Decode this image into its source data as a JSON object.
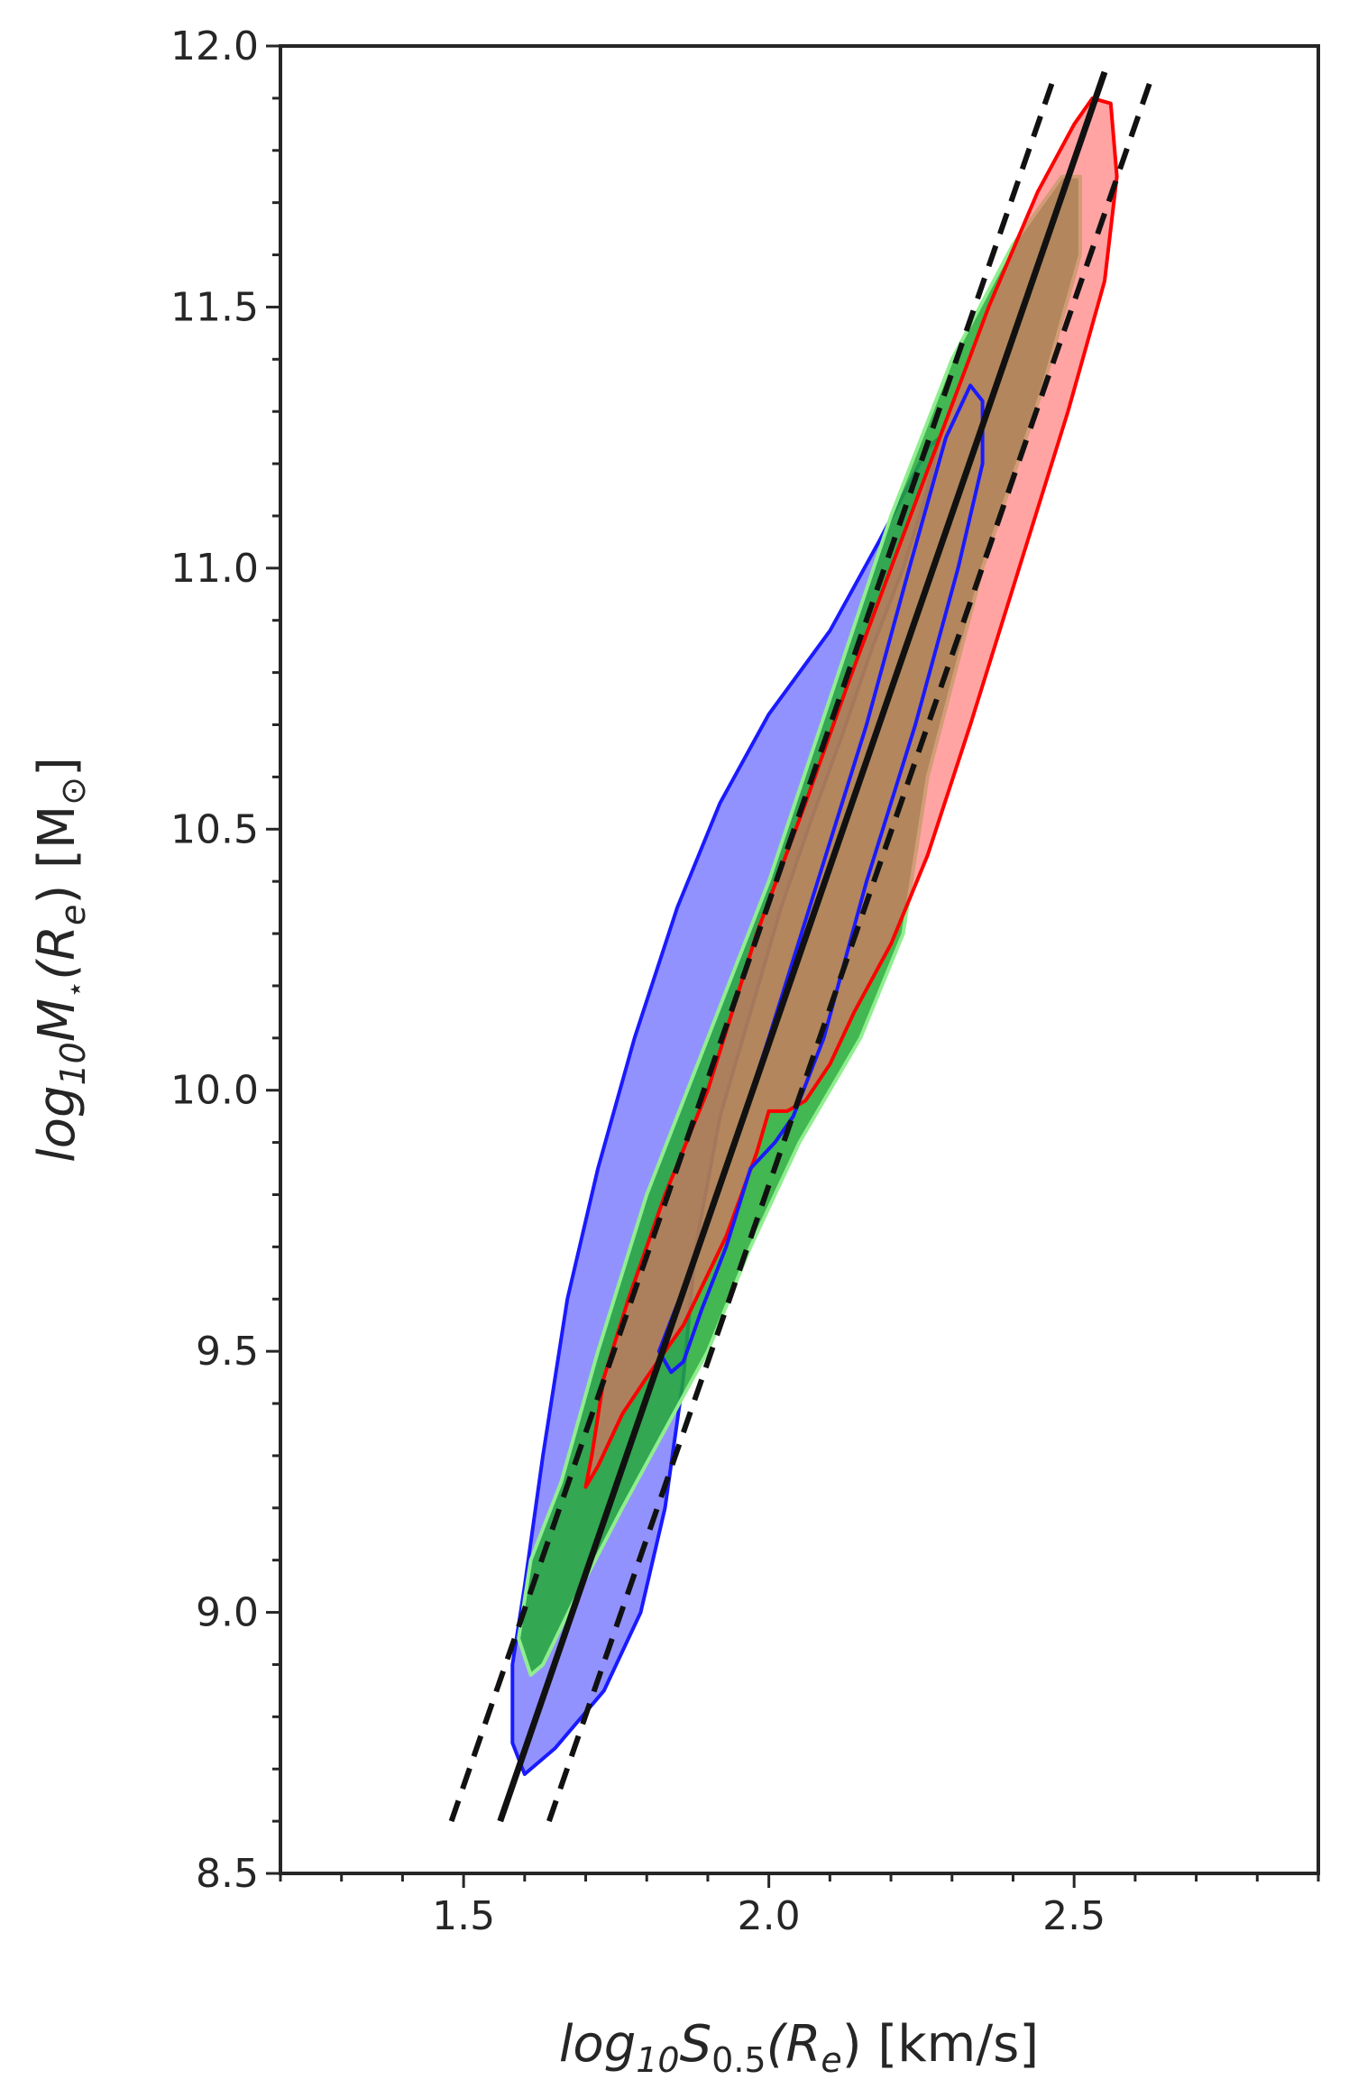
{
  "chart_data": {
    "type": "area",
    "title": "",
    "xlabel": {
      "prefix": "log",
      "sub1": "10",
      "main": "S",
      "sub2": "0.5",
      "arg": "(R",
      "argsub": "e",
      "suffix": ") [km/s]"
    },
    "ylabel": {
      "prefix": "log",
      "sub1": "10",
      "main": "M",
      "sub2": "⋆",
      "arg": "(R",
      "argsub": "e",
      "suffix": ") [M",
      "unitsub": "⊙",
      "close": "]"
    },
    "xlim": [
      1.2,
      2.9
    ],
    "ylim": [
      8.5,
      12.0
    ],
    "xticks": [
      1.5,
      2.0,
      2.5
    ],
    "xtick_labels": [
      "1.5",
      "2.0",
      "2.5"
    ],
    "xminor_step": 0.1,
    "yticks": [
      8.5,
      9.0,
      9.5,
      10.0,
      10.5,
      11.0,
      11.5,
      12.0
    ],
    "ytick_labels": [
      "8.5",
      "9.0",
      "9.5",
      "10.0",
      "10.5",
      "11.0",
      "11.5",
      "12.0"
    ],
    "yminor_step": 0.1,
    "grid": false,
    "colors": {
      "blue_fill": "#7f7fff",
      "blue_edge": "#1a1aff",
      "green_fill": "#22aa33",
      "green_edge": "#90ee90",
      "red_fill": "#ff6666",
      "red_edge": "#ff0000",
      "line": "#111111",
      "axis": "#262626"
    },
    "series": [
      {
        "kind": "contour",
        "fill": "blue_fill",
        "edge": "blue_edge",
        "opacity": 0.85,
        "points": [
          [
            1.6,
            8.69
          ],
          [
            1.58,
            8.75
          ],
          [
            1.58,
            8.9
          ],
          [
            1.6,
            9.05
          ],
          [
            1.63,
            9.3
          ],
          [
            1.67,
            9.6
          ],
          [
            1.72,
            9.85
          ],
          [
            1.78,
            10.1
          ],
          [
            1.85,
            10.35
          ],
          [
            1.92,
            10.55
          ],
          [
            2.0,
            10.72
          ],
          [
            2.1,
            10.88
          ],
          [
            2.18,
            11.05
          ],
          [
            2.26,
            11.23
          ],
          [
            2.28,
            11.25
          ],
          [
            2.26,
            11.15
          ],
          [
            2.22,
            11.0
          ],
          [
            2.17,
            10.85
          ],
          [
            2.12,
            10.68
          ],
          [
            2.07,
            10.52
          ],
          [
            2.02,
            10.35
          ],
          [
            1.97,
            10.15
          ],
          [
            1.92,
            9.95
          ],
          [
            1.88,
            9.7
          ],
          [
            1.86,
            9.45
          ],
          [
            1.83,
            9.2
          ],
          [
            1.79,
            9.0
          ],
          [
            1.73,
            8.85
          ],
          [
            1.65,
            8.74
          ],
          [
            1.6,
            8.69
          ]
        ]
      },
      {
        "kind": "contour",
        "fill": "green_fill",
        "edge": "green_edge",
        "opacity": 0.85,
        "points": [
          [
            1.61,
            8.88
          ],
          [
            1.59,
            8.95
          ],
          [
            1.61,
            9.1
          ],
          [
            1.66,
            9.25
          ],
          [
            1.72,
            9.5
          ],
          [
            1.8,
            9.8
          ],
          [
            1.9,
            10.1
          ],
          [
            2.0,
            10.4
          ],
          [
            2.1,
            10.75
          ],
          [
            2.2,
            11.1
          ],
          [
            2.3,
            11.4
          ],
          [
            2.4,
            11.62
          ],
          [
            2.48,
            11.75
          ],
          [
            2.51,
            11.75
          ],
          [
            2.51,
            11.6
          ],
          [
            2.45,
            11.35
          ],
          [
            2.35,
            11.0
          ],
          [
            2.26,
            10.6
          ],
          [
            2.22,
            10.3
          ],
          [
            2.15,
            10.1
          ],
          [
            2.05,
            9.9
          ],
          [
            1.97,
            9.7
          ],
          [
            1.9,
            9.5
          ],
          [
            1.83,
            9.35
          ],
          [
            1.76,
            9.2
          ],
          [
            1.68,
            9.02
          ],
          [
            1.63,
            8.9
          ],
          [
            1.61,
            8.88
          ]
        ]
      },
      {
        "kind": "contour",
        "fill": "red_fill",
        "edge": "red_edge",
        "opacity": 0.6,
        "points": [
          [
            1.7,
            9.24
          ],
          [
            1.71,
            9.3
          ],
          [
            1.73,
            9.45
          ],
          [
            1.77,
            9.6
          ],
          [
            1.83,
            9.8
          ],
          [
            1.9,
            10.0
          ],
          [
            1.98,
            10.3
          ],
          [
            2.06,
            10.55
          ],
          [
            2.13,
            10.78
          ],
          [
            2.2,
            11.0
          ],
          [
            2.28,
            11.25
          ],
          [
            2.36,
            11.5
          ],
          [
            2.44,
            11.72
          ],
          [
            2.5,
            11.85
          ],
          [
            2.53,
            11.9
          ],
          [
            2.56,
            11.89
          ],
          [
            2.57,
            11.75
          ],
          [
            2.55,
            11.55
          ],
          [
            2.49,
            11.3
          ],
          [
            2.41,
            11.0
          ],
          [
            2.33,
            10.7
          ],
          [
            2.26,
            10.45
          ],
          [
            2.2,
            10.28
          ],
          [
            2.14,
            10.15
          ],
          [
            2.1,
            10.05
          ],
          [
            2.06,
            9.98
          ],
          [
            2.03,
            9.96
          ],
          [
            2.0,
            9.96
          ],
          [
            1.98,
            9.88
          ],
          [
            1.93,
            9.72
          ],
          [
            1.86,
            9.55
          ],
          [
            1.8,
            9.45
          ],
          [
            1.76,
            9.38
          ],
          [
            1.72,
            9.28
          ],
          [
            1.7,
            9.24
          ]
        ]
      },
      {
        "kind": "contour_line",
        "edge": "blue_edge",
        "points": [
          [
            1.82,
            9.5
          ],
          [
            1.87,
            9.65
          ],
          [
            1.93,
            9.85
          ],
          [
            2.0,
            10.1
          ],
          [
            2.08,
            10.4
          ],
          [
            2.16,
            10.7
          ],
          [
            2.23,
            11.0
          ],
          [
            2.29,
            11.25
          ],
          [
            2.33,
            11.35
          ],
          [
            2.35,
            11.32
          ],
          [
            2.35,
            11.2
          ],
          [
            2.31,
            11.0
          ],
          [
            2.24,
            10.7
          ],
          [
            2.16,
            10.4
          ],
          [
            2.09,
            10.1
          ],
          [
            2.04,
            9.95
          ],
          [
            2.01,
            9.9
          ],
          [
            1.97,
            9.85
          ],
          [
            1.93,
            9.7
          ],
          [
            1.89,
            9.58
          ],
          [
            1.86,
            9.48
          ],
          [
            1.84,
            9.46
          ],
          [
            1.82,
            9.5
          ]
        ]
      },
      {
        "kind": "line",
        "style": "solid",
        "color": "line",
        "points": [
          [
            1.56,
            8.6
          ],
          [
            2.55,
            11.95
          ]
        ]
      },
      {
        "kind": "line",
        "style": "dashed",
        "color": "line",
        "points": [
          [
            1.48,
            8.6
          ],
          [
            2.47,
            11.95
          ]
        ]
      },
      {
        "kind": "line",
        "style": "dashed",
        "color": "line",
        "points": [
          [
            1.64,
            8.6
          ],
          [
            2.63,
            11.95
          ]
        ]
      }
    ]
  }
}
